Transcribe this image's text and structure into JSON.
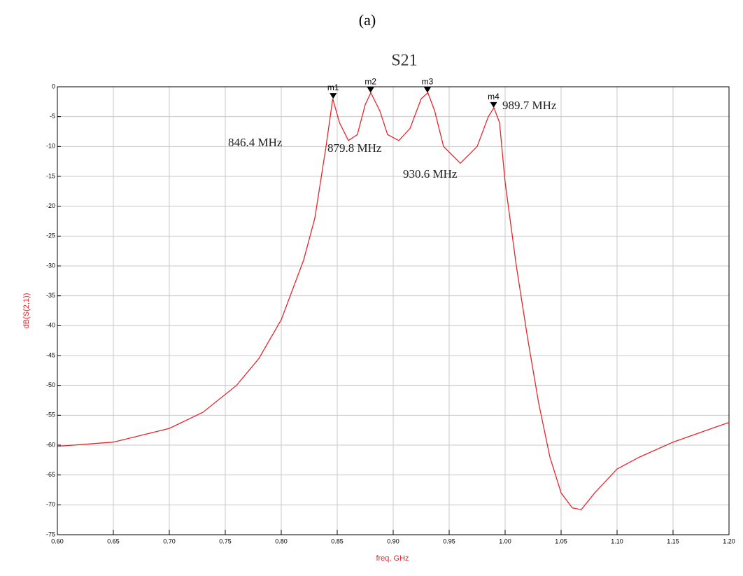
{
  "panel_label": "(a)",
  "chart_data": {
    "type": "line",
    "title": "S21",
    "x_label": "freq, GHz",
    "y_label": "dB(S(2,1))",
    "xlim": [
      0.6,
      1.2
    ],
    "ylim": [
      -75,
      0
    ],
    "grid": true,
    "xticks": [
      {
        "value": 0.6,
        "label": "0.60"
      },
      {
        "value": 0.65,
        "label": "0.65"
      },
      {
        "value": 0.7,
        "label": "0.70"
      },
      {
        "value": 0.75,
        "label": "0.75"
      },
      {
        "value": 0.8,
        "label": "0.80"
      },
      {
        "value": 0.85,
        "label": "0.85"
      },
      {
        "value": 0.9,
        "label": "0.90"
      },
      {
        "value": 0.95,
        "label": "0.95"
      },
      {
        "value": 1.0,
        "label": "1.00"
      },
      {
        "value": 1.05,
        "label": "1.05"
      },
      {
        "value": 1.1,
        "label": "1.10"
      },
      {
        "value": 1.15,
        "label": "1.15"
      },
      {
        "value": 1.2,
        "label": "1.20"
      }
    ],
    "yticks": [
      0,
      -5,
      -10,
      -15,
      -20,
      -25,
      -30,
      -35,
      -40,
      -45,
      -50,
      -55,
      -60,
      -65,
      -70,
      -75
    ],
    "x": [
      0.6,
      0.65,
      0.7,
      0.73,
      0.76,
      0.78,
      0.8,
      0.82,
      0.83,
      0.84,
      0.846,
      0.852,
      0.86,
      0.868,
      0.875,
      0.88,
      0.888,
      0.895,
      0.905,
      0.915,
      0.925,
      0.931,
      0.937,
      0.945,
      0.96,
      0.975,
      0.985,
      0.99,
      0.995,
      1.0,
      1.01,
      1.02,
      1.03,
      1.04,
      1.05,
      1.06,
      1.068,
      1.08,
      1.1,
      1.12,
      1.15,
      1.18,
      1.2
    ],
    "series": [
      {
        "name": "dB(S(2,1))",
        "color": "#e8252b",
        "values": [
          -60.2,
          -59.5,
          -57.2,
          -54.5,
          -50,
          -45.5,
          -39,
          -29,
          -22,
          -10,
          -2,
          -6,
          -9,
          -8,
          -3,
          -1,
          -4,
          -8,
          -9,
          -7,
          -2,
          -1,
          -4,
          -10,
          -12.8,
          -10,
          -5,
          -3.5,
          -6,
          -16,
          -30,
          -42,
          -53,
          -62,
          -68,
          -70.5,
          -70.8,
          -68,
          -64,
          -62,
          -59.5,
          -57.5,
          -56.2
        ]
      }
    ],
    "markers": [
      {
        "label": "m1",
        "x": 0.8464,
        "y": -2,
        "annotation": "846.4 MHz"
      },
      {
        "label": "m2",
        "x": 0.8798,
        "y": -1,
        "annotation": "879.8 MHz"
      },
      {
        "label": "m3",
        "x": 0.9306,
        "y": -1,
        "annotation": "930.6 MHz"
      },
      {
        "label": "m4",
        "x": 0.9897,
        "y": -3.5,
        "annotation": "989.7 MHz"
      }
    ]
  }
}
